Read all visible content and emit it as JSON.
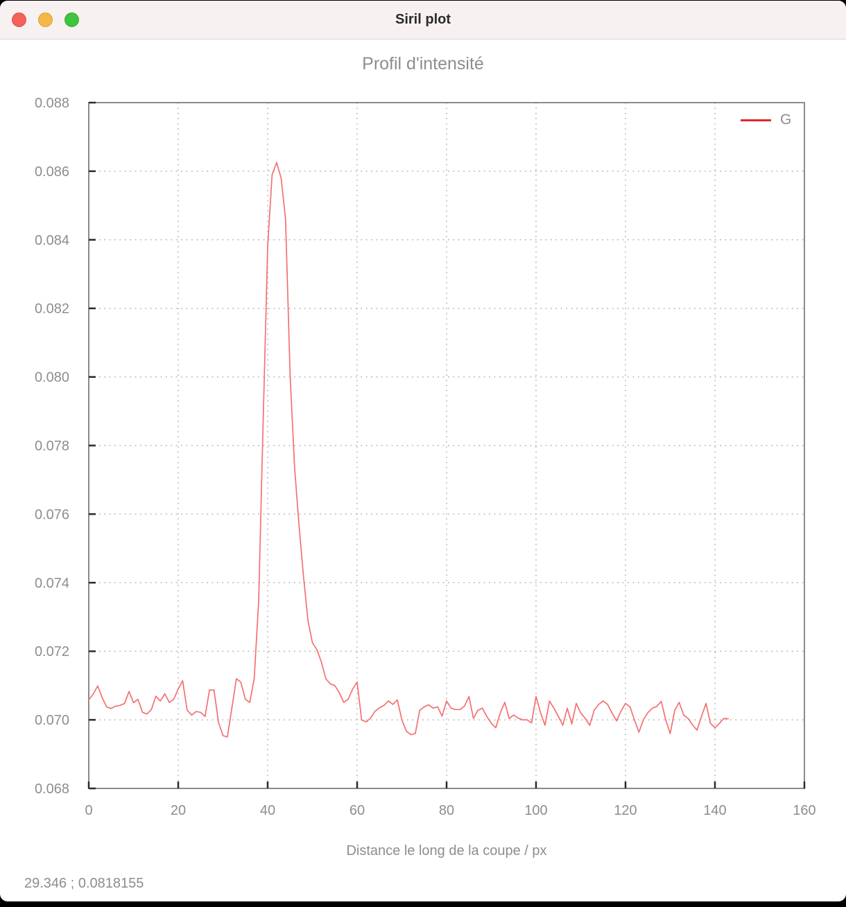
{
  "window": {
    "title": "Siril plot",
    "status_text": "29.346 ; 0.0818155",
    "traffic_lights": {
      "close_color": "#f4615a",
      "minimize_color": "#f3b845",
      "zoom_color": "#3ec43e"
    },
    "titlebar_bg": "#f7f2f1"
  },
  "chart_data": {
    "type": "line",
    "title": "Profil d'intensité",
    "xlabel": "Distance le long de la coupe / px",
    "ylabel": "",
    "xlim": [
      0,
      160
    ],
    "ylim": [
      0.068,
      0.088
    ],
    "x_ticks": [
      0,
      20,
      40,
      60,
      80,
      100,
      120,
      140,
      160
    ],
    "x_tick_labels": [
      "0",
      "20",
      "40",
      "60",
      "80",
      "100",
      "120",
      "140",
      "160"
    ],
    "y_ticks": [
      0.068,
      0.07,
      0.072,
      0.074,
      0.076,
      0.078,
      0.08,
      0.082,
      0.084,
      0.086,
      0.088
    ],
    "y_tick_labels": [
      "0.068",
      "0.070",
      "0.072",
      "0.074",
      "0.076",
      "0.078",
      "0.080",
      "0.082",
      "0.084",
      "0.086",
      "0.088"
    ],
    "grid": "dotted",
    "grid_color": "#b3b3b3",
    "border_color": "#8a8a8a",
    "tick_color": "#2a2a2a",
    "tick_label_color": "#8d8d8d",
    "legend": {
      "position": "top-right",
      "entries": [
        {
          "label": "G",
          "color": "#e62628"
        }
      ]
    },
    "series": [
      {
        "name": "G",
        "color": "#f47070",
        "x_start": 0,
        "x_step": 1,
        "values": [
          0.07058,
          0.07075,
          0.07099,
          0.07065,
          0.07038,
          0.07033,
          0.0704,
          0.07042,
          0.07048,
          0.07083,
          0.0705,
          0.0706,
          0.07022,
          0.07017,
          0.0703,
          0.07069,
          0.07055,
          0.07076,
          0.07051,
          0.0706,
          0.0709,
          0.07114,
          0.07028,
          0.07014,
          0.07024,
          0.07022,
          0.0701,
          0.07087,
          0.07087,
          0.06993,
          0.06954,
          0.0695,
          0.07035,
          0.0712,
          0.0711,
          0.0706,
          0.07051,
          0.0712,
          0.0735,
          0.0788,
          0.0838,
          0.0859,
          0.08625,
          0.0858,
          0.0846,
          0.0801,
          0.0774,
          0.0757,
          0.0742,
          0.0729,
          0.07225,
          0.07205,
          0.07169,
          0.0712,
          0.07105,
          0.071,
          0.0708,
          0.07051,
          0.0706,
          0.0709,
          0.0711,
          0.07,
          0.06994,
          0.07005,
          0.07025,
          0.07035,
          0.07042,
          0.07055,
          0.07045,
          0.07058,
          0.07,
          0.06967,
          0.06957,
          0.0696,
          0.07028,
          0.07038,
          0.07044,
          0.07034,
          0.07038,
          0.07011,
          0.07055,
          0.07034,
          0.0703,
          0.0703,
          0.0704,
          0.07068,
          0.07004,
          0.07028,
          0.07034,
          0.0701,
          0.0699,
          0.06977,
          0.0702,
          0.07051,
          0.07004,
          0.07014,
          0.07005,
          0.07,
          0.07,
          0.06991,
          0.07068,
          0.07021,
          0.06984,
          0.07055,
          0.07034,
          0.0701,
          0.06984,
          0.07034,
          0.06988,
          0.07048,
          0.0702,
          0.07004,
          0.06984,
          0.07028,
          0.07045,
          0.07055,
          0.07045,
          0.0702,
          0.06997,
          0.07025,
          0.07048,
          0.07038,
          0.07,
          0.06964,
          0.07,
          0.07021,
          0.07034,
          0.07039,
          0.07054,
          0.07,
          0.0696,
          0.07028,
          0.07051,
          0.07014,
          0.07004,
          0.06985,
          0.0697,
          0.0701,
          0.07048,
          0.0699,
          0.06977,
          0.0699,
          0.07004,
          0.07003
        ]
      }
    ]
  }
}
